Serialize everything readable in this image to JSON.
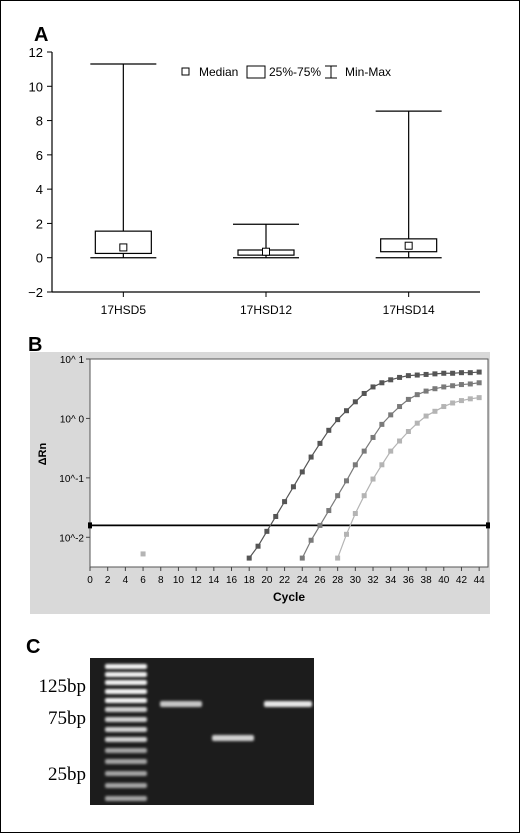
{
  "figure": {
    "panels": [
      {
        "label": "A"
      },
      {
        "label": "B"
      },
      {
        "label": "C"
      }
    ]
  },
  "chart_data": [
    {
      "type": "box",
      "panel": "A",
      "title": "",
      "xlabel": "",
      "ylabel": "",
      "ylim": [
        -2,
        12
      ],
      "yticks": [
        -2,
        0,
        2,
        4,
        6,
        8,
        10,
        12
      ],
      "categories": [
        "17HSD5",
        "17HSD12",
        "17HSD14"
      ],
      "boxes": [
        {
          "min": 0.0,
          "q1": 0.25,
          "median": 0.6,
          "q3": 1.55,
          "max": 11.3
        },
        {
          "min": 0.0,
          "q1": 0.15,
          "median": 0.35,
          "q3": 0.45,
          "max": 1.95
        },
        {
          "min": 0.0,
          "q1": 0.35,
          "median": 0.7,
          "q3": 1.1,
          "max": 8.55
        }
      ],
      "legend": {
        "position": "top",
        "entries": [
          "Median",
          "25%-75%",
          "Min-Max"
        ]
      },
      "grid": false
    },
    {
      "type": "line",
      "panel": "B",
      "title": "",
      "xlabel": "Cycle",
      "ylabel": "ΔRn",
      "xlim": [
        0,
        45
      ],
      "ylim_log10": [
        -2.5,
        1
      ],
      "y_scale": "log",
      "xticks": [
        0,
        2,
        4,
        6,
        8,
        10,
        12,
        14,
        16,
        18,
        20,
        22,
        24,
        26,
        28,
        30,
        32,
        34,
        36,
        38,
        40,
        42,
        44
      ],
      "ytick_labels": [
        {
          "log10": 1,
          "text": "10^ 1"
        },
        {
          "log10": 0,
          "text": "10^ 0"
        },
        {
          "log10": -1,
          "text": "10^-1"
        },
        {
          "log10": -2,
          "text": "10^-2"
        }
      ],
      "threshold_log10": -1.8,
      "outlier_point": {
        "x": 6,
        "log10": -2.28
      },
      "series": [
        {
          "color": "#555555",
          "x": [
            18,
            19,
            20,
            21,
            22,
            23,
            24,
            25,
            26,
            27,
            28,
            29,
            30,
            31,
            32,
            33,
            34,
            35,
            36,
            37,
            38,
            39,
            40,
            41,
            42,
            43,
            44
          ],
          "log10": [
            -2.35,
            -2.15,
            -1.9,
            -1.65,
            -1.4,
            -1.15,
            -0.9,
            -0.65,
            -0.42,
            -0.2,
            -0.02,
            0.13,
            0.28,
            0.42,
            0.53,
            0.6,
            0.65,
            0.69,
            0.72,
            0.73,
            0.74,
            0.75,
            0.76,
            0.76,
            0.77,
            0.77,
            0.78
          ]
        },
        {
          "color": "#7a7a7a",
          "x": [
            24,
            25,
            26,
            27,
            28,
            29,
            30,
            31,
            32,
            33,
            34,
            35,
            36,
            37,
            38,
            39,
            40,
            41,
            42,
            43,
            44
          ],
          "log10": [
            -2.35,
            -2.05,
            -1.8,
            -1.55,
            -1.3,
            -1.05,
            -0.78,
            -0.55,
            -0.32,
            -0.1,
            0.06,
            0.2,
            0.32,
            0.4,
            0.46,
            0.5,
            0.53,
            0.55,
            0.57,
            0.58,
            0.6
          ]
        },
        {
          "color": "#b4b4b4",
          "x": [
            28,
            29,
            30,
            31,
            32,
            33,
            34,
            35,
            36,
            37,
            38,
            39,
            40,
            41,
            42,
            43,
            44
          ],
          "log10": [
            -2.35,
            -1.95,
            -1.6,
            -1.3,
            -1.02,
            -0.78,
            -0.55,
            -0.38,
            -0.22,
            -0.08,
            0.04,
            0.12,
            0.2,
            0.26,
            0.3,
            0.33,
            0.35
          ]
        }
      ]
    }
  ],
  "gel": {
    "panel": "C",
    "size_labels": [
      "125bp",
      "75bp",
      "25bp"
    ],
    "lanes": [
      {
        "kind": "ladder"
      },
      {
        "kind": "sample",
        "band_bp": 110
      },
      {
        "kind": "sample",
        "band_bp": 70
      },
      {
        "kind": "sample",
        "band_bp": 110
      }
    ]
  }
}
